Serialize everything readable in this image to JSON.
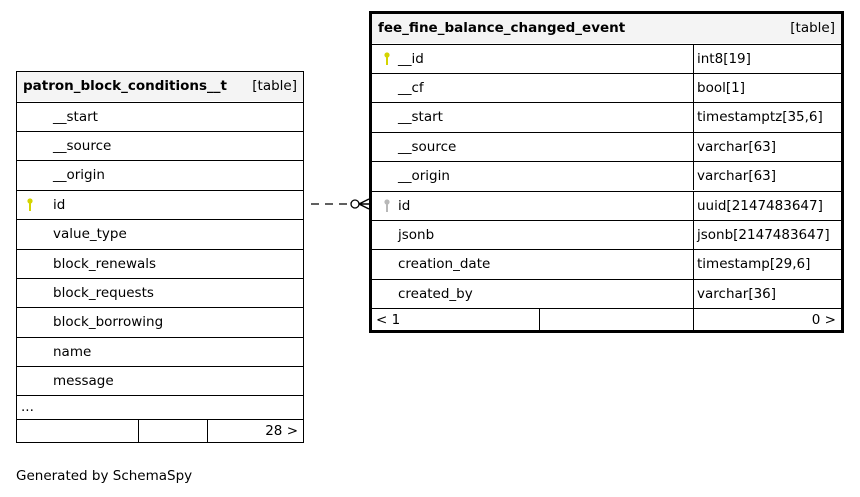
{
  "left_table": {
    "name": "patron_block_conditions__t",
    "type": "[table]",
    "columns": [
      {
        "name": "__start",
        "key": false
      },
      {
        "name": "__source",
        "key": false
      },
      {
        "name": "__origin",
        "key": false
      },
      {
        "name": "id",
        "key": true
      },
      {
        "name": "value_type",
        "key": false
      },
      {
        "name": "block_renewals",
        "key": false
      },
      {
        "name": "block_requests",
        "key": false
      },
      {
        "name": "block_borrowing",
        "key": false
      },
      {
        "name": "name",
        "key": false
      },
      {
        "name": "message",
        "key": false
      }
    ],
    "more": "...",
    "footer_right": "28 >"
  },
  "right_table": {
    "name": "fee_fine_balance_changed_event",
    "type": "[table]",
    "columns": [
      {
        "name": "__id",
        "type": "int8[19]",
        "key": "primary"
      },
      {
        "name": "__cf",
        "type": "bool[1]",
        "key": ""
      },
      {
        "name": "__start",
        "type": "timestamptz[35,6]",
        "key": ""
      },
      {
        "name": "__source",
        "type": "varchar[63]",
        "key": ""
      },
      {
        "name": "__origin",
        "type": "varchar[63]",
        "key": ""
      },
      {
        "name": "id",
        "type": "uuid[2147483647]",
        "key": "foreign"
      },
      {
        "name": "jsonb",
        "type": "jsonb[2147483647]",
        "key": ""
      },
      {
        "name": "creation_date",
        "type": "timestamp[29,6]",
        "key": ""
      },
      {
        "name": "created_by",
        "type": "varchar[36]",
        "key": ""
      }
    ],
    "footer_left": "< 1",
    "footer_right": "0 >"
  },
  "footer": "Generated by SchemaSpy",
  "colors": {
    "primary_key": "#d4d400",
    "foreign_key": "#b8b8b8",
    "header_bg": "#f4f4f4"
  }
}
